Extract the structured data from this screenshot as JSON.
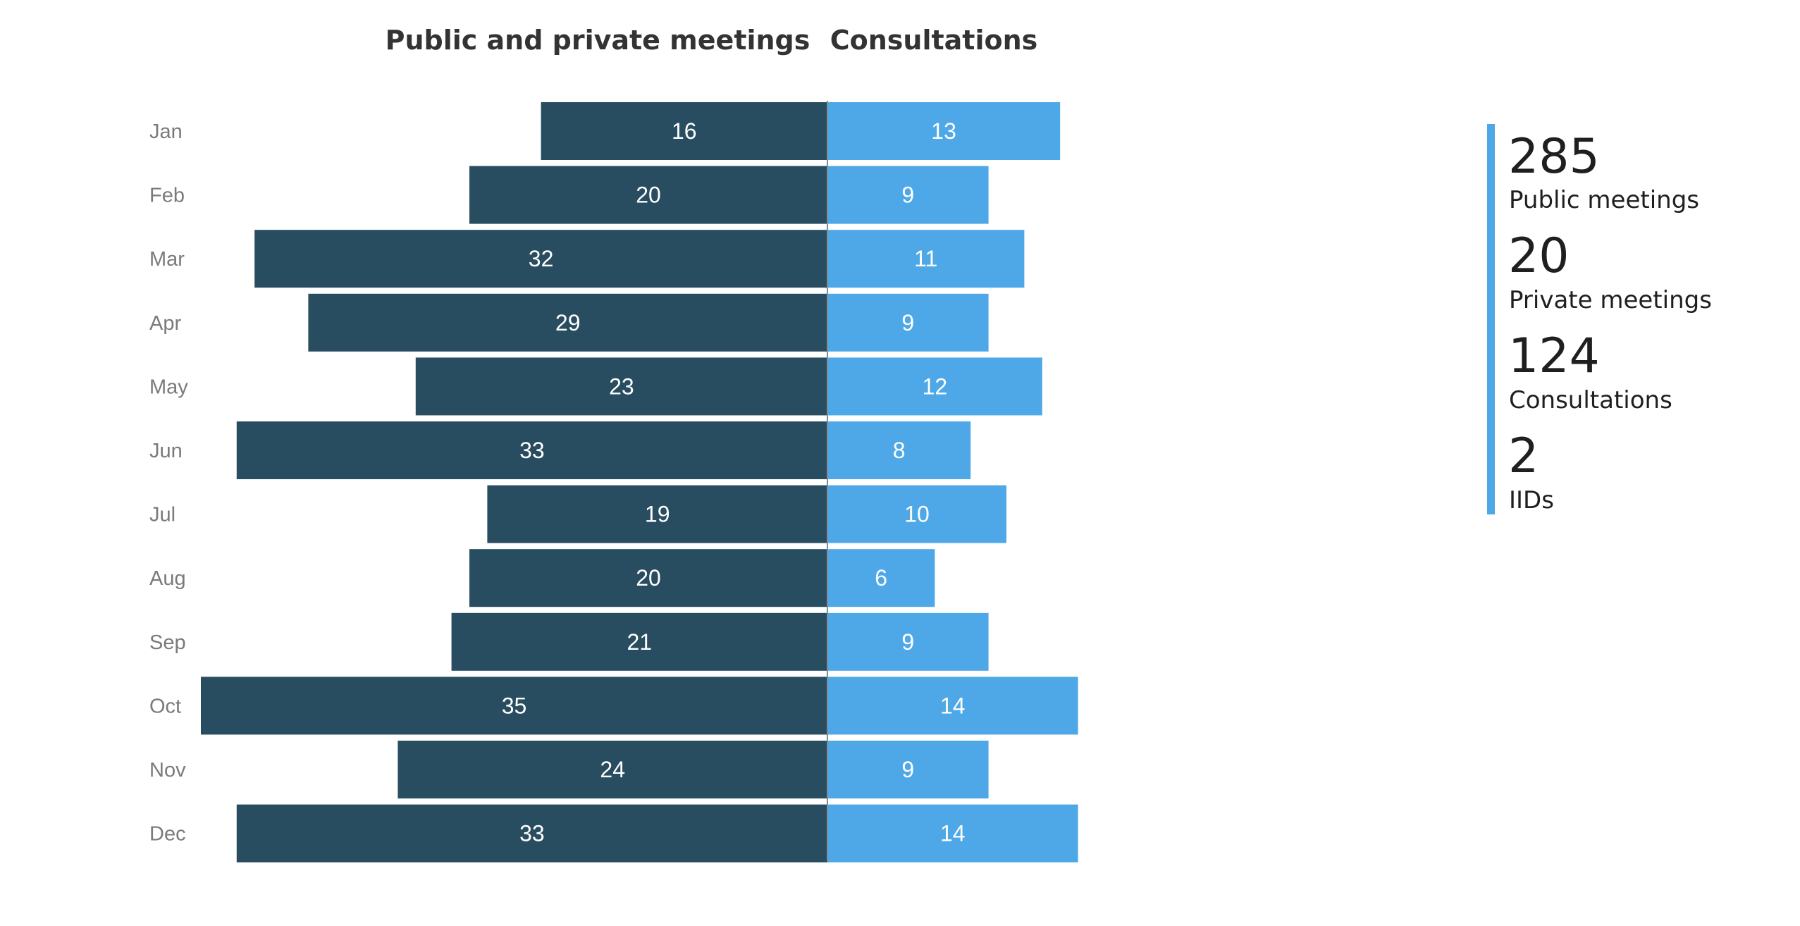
{
  "chart_data": {
    "type": "bar",
    "orientation": "horizontal-diverging",
    "categories": [
      "Jan",
      "Feb",
      "Mar",
      "Apr",
      "May",
      "Jun",
      "Jul",
      "Aug",
      "Sep",
      "Oct",
      "Nov",
      "Dec"
    ],
    "series": [
      {
        "name": "Public and private meetings",
        "direction": "left",
        "color": "#294d60",
        "values": [
          16,
          20,
          32,
          29,
          23,
          33,
          19,
          20,
          21,
          35,
          24,
          33
        ]
      },
      {
        "name": "Consultations",
        "direction": "right",
        "color": "#4ea8e7",
        "values": [
          13,
          9,
          11,
          9,
          12,
          8,
          10,
          6,
          9,
          14,
          9,
          14
        ]
      }
    ],
    "titles": {
      "left": "Public and private meetings",
      "right": "Consultations"
    },
    "grid": false
  },
  "summary": {
    "accent_color": "#4ea8e7",
    "items": [
      {
        "value": "285",
        "label": "Public meetings"
      },
      {
        "value": "20",
        "label": "Private meetings"
      },
      {
        "value": "124",
        "label": "Consultations"
      },
      {
        "value": "2",
        "label": "IIDs"
      }
    ]
  }
}
